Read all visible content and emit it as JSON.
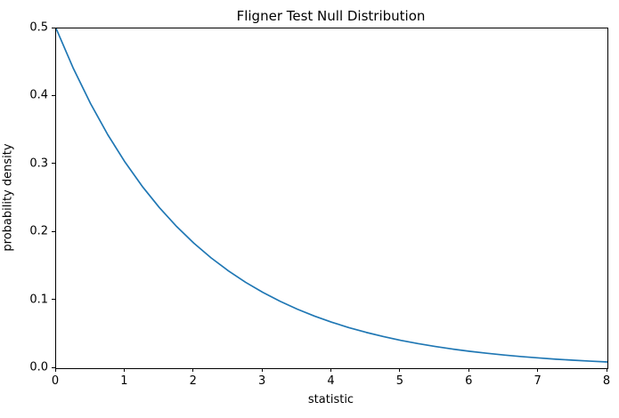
{
  "figure": {
    "background_color": "#ffffff",
    "axes_edge_color": "#000000",
    "text_color": "#000000"
  },
  "chart_data": {
    "type": "line",
    "title": "Fligner Test Null Distribution",
    "xlabel": "statistic",
    "ylabel": "probability density",
    "xlim": [
      0,
      8
    ],
    "ylim": [
      0.0,
      0.5
    ],
    "xticks": [
      0,
      1,
      2,
      3,
      4,
      5,
      6,
      7,
      8
    ],
    "xtick_labels": [
      "0",
      "1",
      "2",
      "3",
      "4",
      "5",
      "6",
      "7",
      "8"
    ],
    "yticks": [
      0.0,
      0.1,
      0.2,
      0.3,
      0.4,
      0.5
    ],
    "ytick_labels": [
      "0.0",
      "0.1",
      "0.2",
      "0.3",
      "0.4",
      "0.5"
    ],
    "grid": false,
    "legend_position": "none",
    "line_color": "#1f77b4",
    "line_width": 1.7,
    "series": [
      {
        "x": [
          0.0,
          0.25,
          0.5,
          0.75,
          1.0,
          1.25,
          1.5,
          1.75,
          2.0,
          2.25,
          2.5,
          2.75,
          3.0,
          3.25,
          3.5,
          3.75,
          4.0,
          4.25,
          4.5,
          4.75,
          5.0,
          5.25,
          5.5,
          5.75,
          6.0,
          6.25,
          6.5,
          6.75,
          7.0,
          7.25,
          7.5,
          7.75,
          8.0
        ],
        "y": [
          0.5,
          0.4412,
          0.3894,
          0.3436,
          0.3033,
          0.2676,
          0.2362,
          0.2084,
          0.1839,
          0.1623,
          0.1433,
          0.1264,
          0.1116,
          0.0985,
          0.0869,
          0.0767,
          0.0677,
          0.0597,
          0.0527,
          0.0465,
          0.041,
          0.0362,
          0.032,
          0.0282,
          0.0249,
          0.022,
          0.0194,
          0.0171,
          0.0151,
          0.0133,
          0.0118,
          0.0104,
          0.0092
        ]
      }
    ]
  }
}
